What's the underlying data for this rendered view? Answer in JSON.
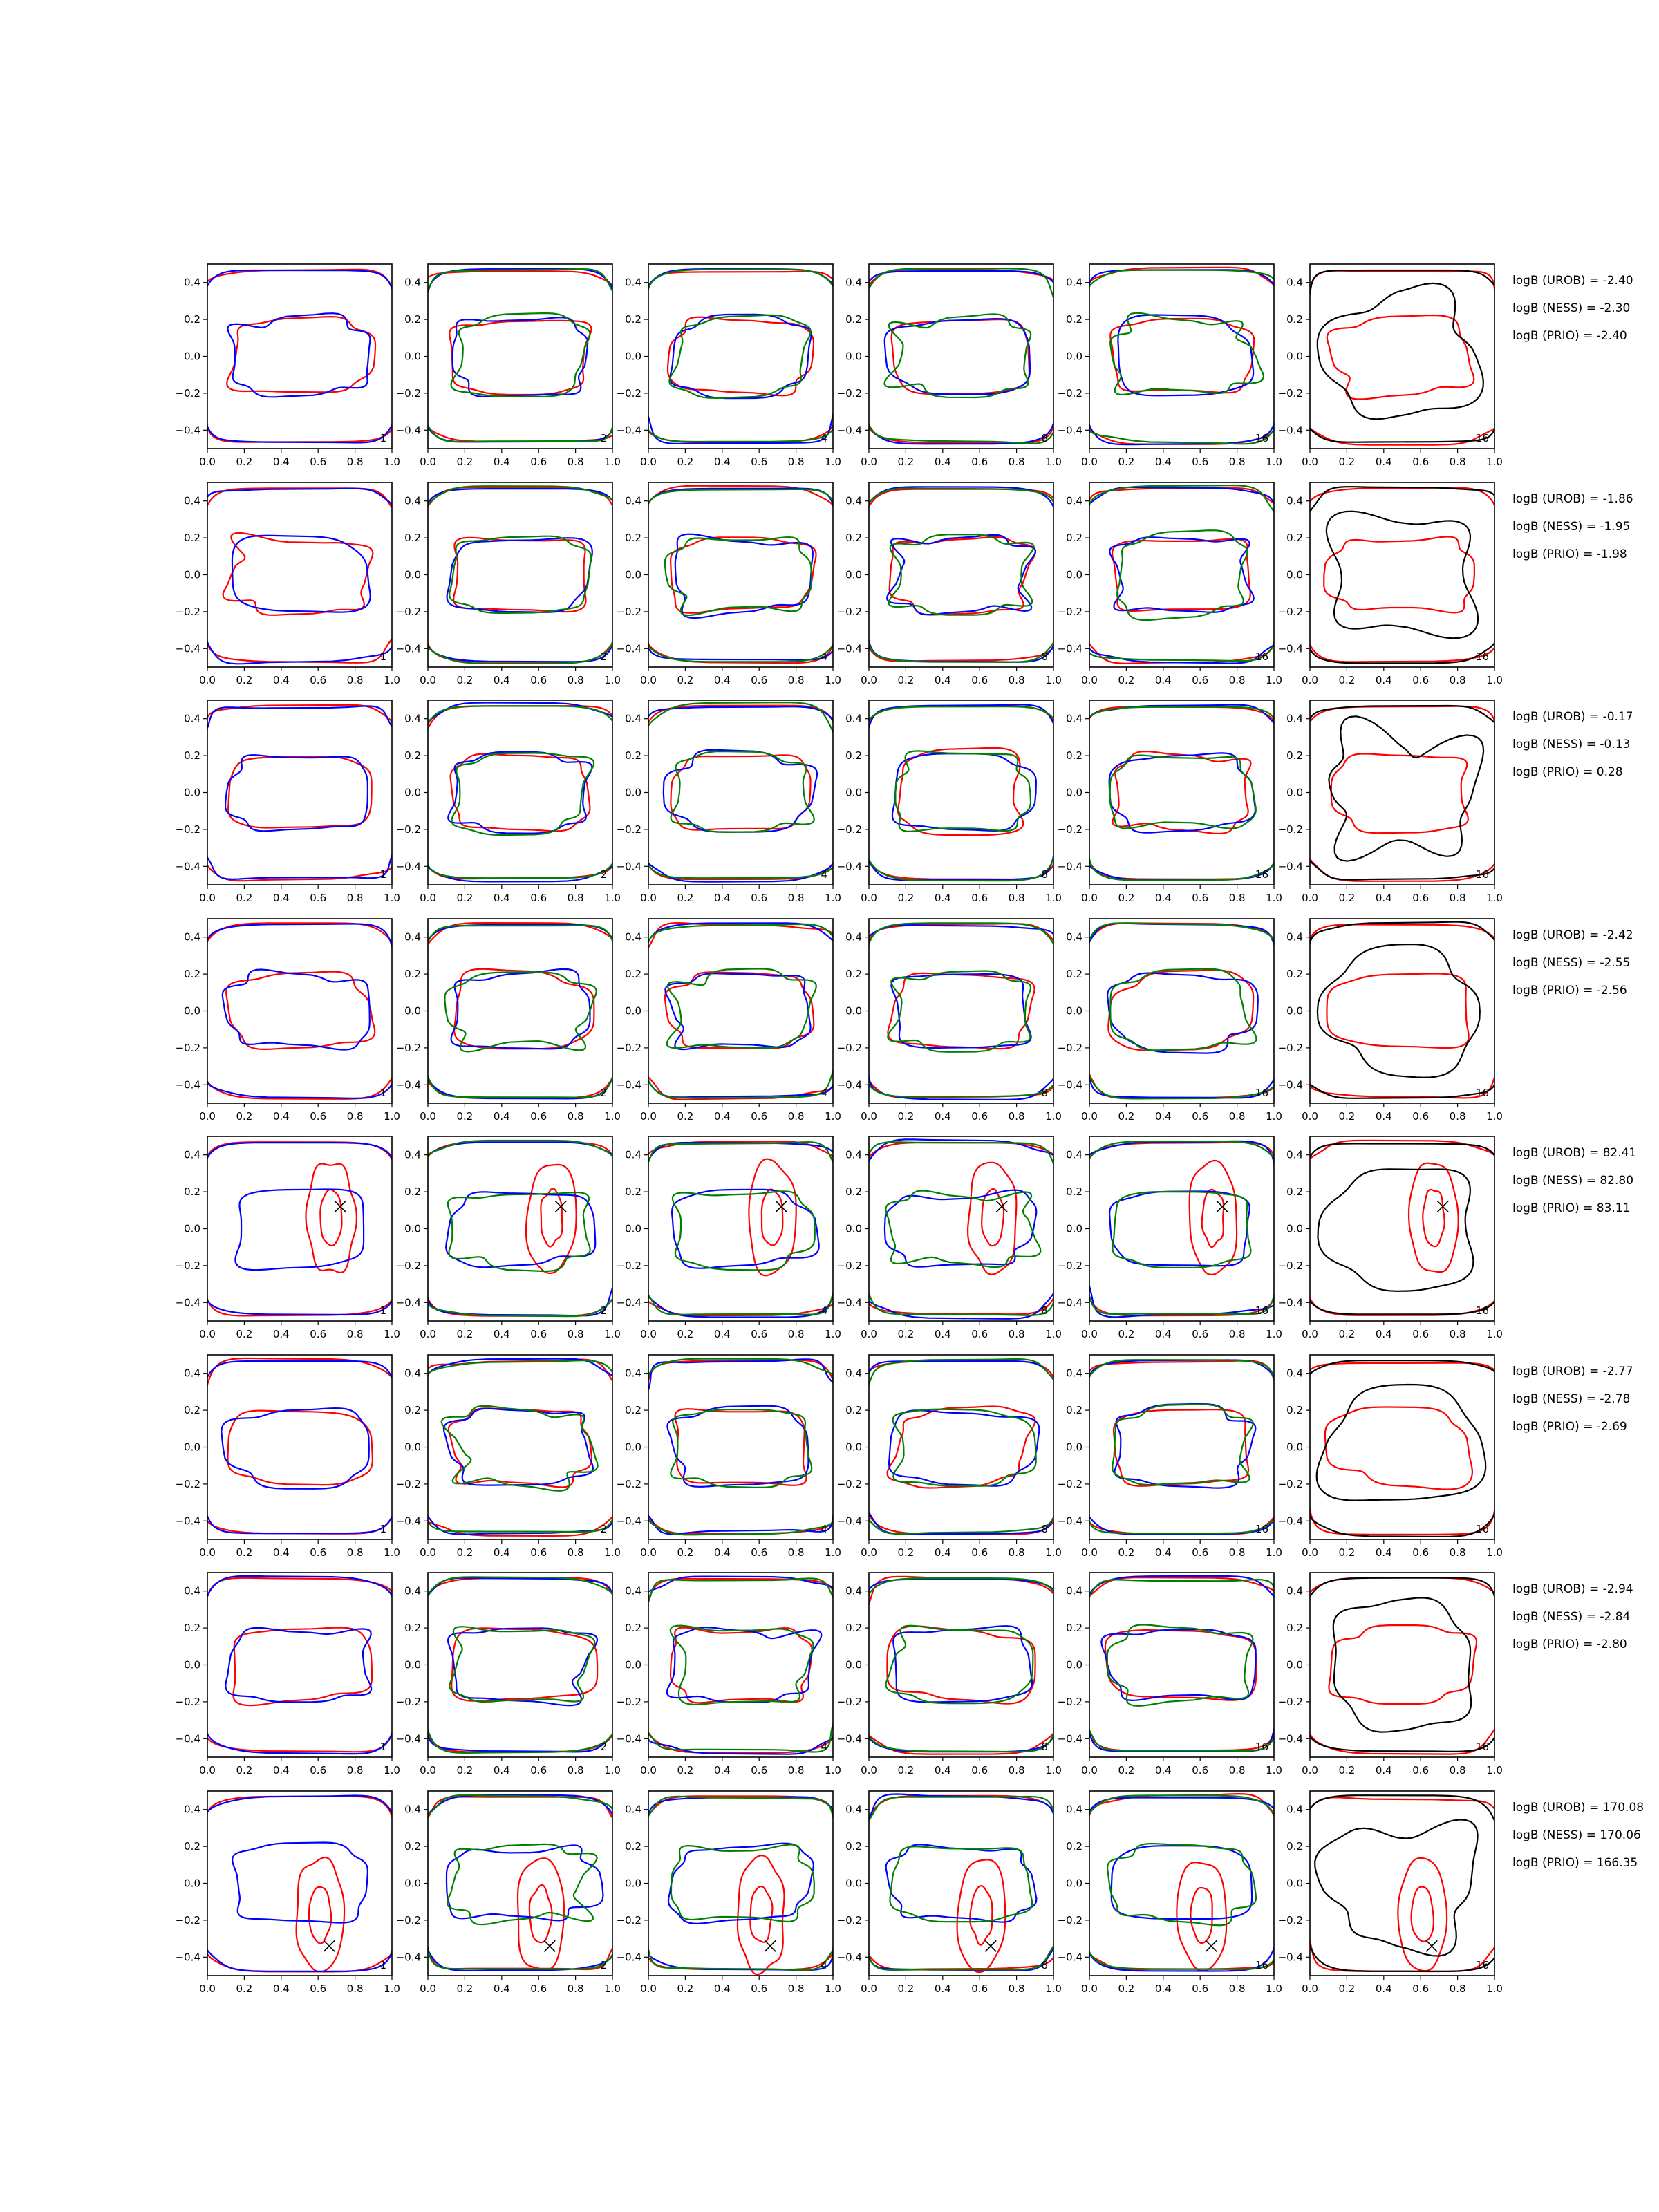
{
  "chart_data": {
    "type": "contour-grid",
    "rows": 8,
    "columns": 6,
    "xlim": [
      0.0,
      1.0
    ],
    "ylim": [
      -0.5,
      0.5
    ],
    "x_ticks": [
      "0.0",
      "0.2",
      "0.4",
      "0.6",
      "0.8",
      "1.0"
    ],
    "y_ticks": [
      "0.4",
      "0.2",
      "0.0",
      "−0.2",
      "−0.4"
    ],
    "y_tick_values": [
      0.4,
      0.2,
      0.0,
      -0.2,
      -0.4
    ],
    "x_tick_values": [
      0.0,
      0.2,
      0.4,
      0.6,
      0.8,
      1.0
    ],
    "column_tags": [
      "1",
      "2",
      "4",
      "8",
      "16",
      "16"
    ],
    "column_series_colors": [
      [
        "#ff0000",
        "#0000ff"
      ],
      [
        "#ff0000",
        "#0000ff",
        "#008000"
      ],
      [
        "#ff0000",
        "#0000ff",
        "#008000"
      ],
      [
        "#ff0000",
        "#0000ff",
        "#008000"
      ],
      [
        "#ff0000",
        "#0000ff",
        "#008000"
      ],
      [
        "#ff0000",
        "#000000"
      ]
    ],
    "marker": "x",
    "row_results": [
      {
        "urob": "logB (UROB) = -2.40",
        "ness": "logB (NESS) = -2.30",
        "prio": "logB (PRIO) = -2.40",
        "marker": null
      },
      {
        "urob": "logB (UROB) = -1.86",
        "ness": "logB (NESS) = -1.95",
        "prio": "logB (PRIO) = -1.98",
        "marker": null
      },
      {
        "urob": "logB (UROB) = -0.17",
        "ness": "logB (NESS) = -0.13",
        "prio": "logB (PRIO) = 0.28",
        "marker": null
      },
      {
        "urob": "logB (UROB) = -2.42",
        "ness": "logB (NESS) = -2.55",
        "prio": "logB (PRIO) = -2.56",
        "marker": null
      },
      {
        "urob": "logB (UROB) = 82.41",
        "ness": "logB (NESS) = 82.80",
        "prio": "logB (PRIO) = 83.11",
        "marker": [
          0.72,
          0.12
        ]
      },
      {
        "urob": "logB (UROB) = -2.77",
        "ness": "logB (NESS) = -2.78",
        "prio": "logB (PRIO) = -2.69",
        "marker": null
      },
      {
        "urob": "logB (UROB) = -2.94",
        "ness": "logB (NESS) = -2.84",
        "prio": "logB (PRIO) = -2.80",
        "marker": null
      },
      {
        "urob": "logB (UROB) = 170.08",
        "ness": "logB (NESS) = 170.06",
        "prio": "logB (PRIO) = 166.35",
        "marker": [
          0.66,
          -0.34
        ]
      }
    ]
  }
}
